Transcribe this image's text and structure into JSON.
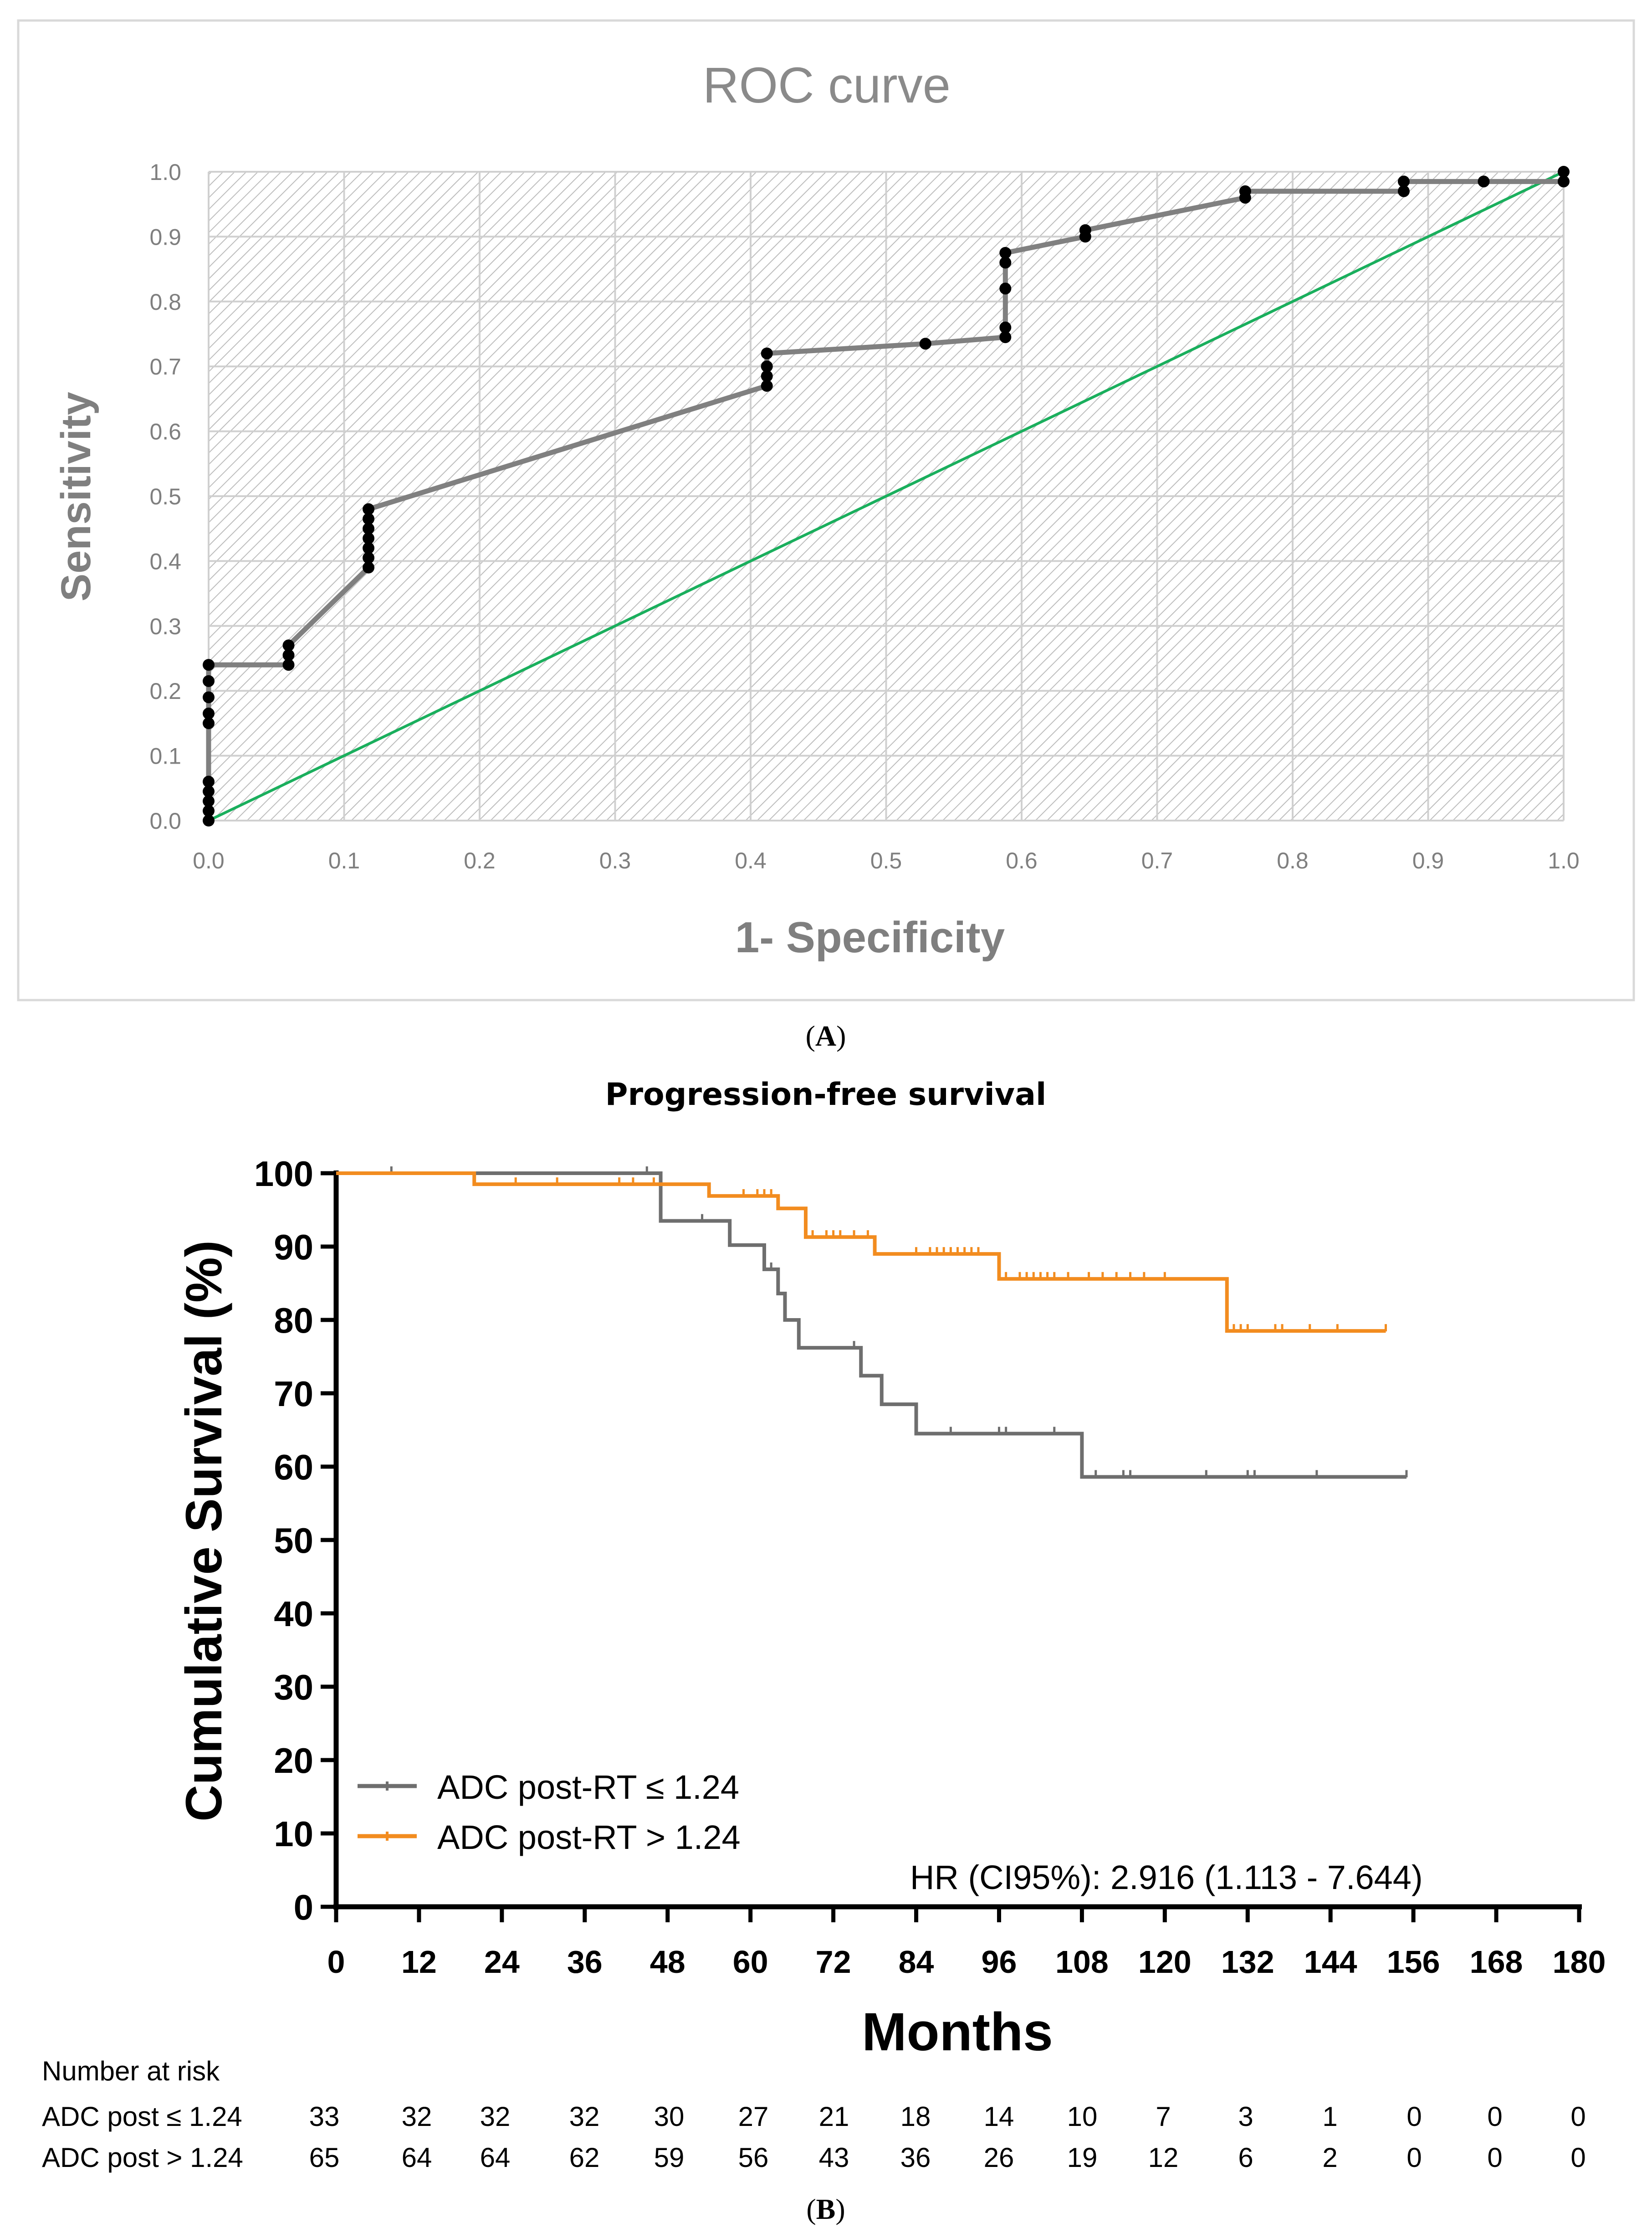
{
  "panel_a": {
    "caption_prefix": "(",
    "caption_letter": "A",
    "caption_suffix": ")"
  },
  "panel_b": {
    "caption_prefix": "(",
    "caption_letter": "B",
    "caption_suffix": ")",
    "hr_text": "HR (CI95%): 2.916 (1.113  - 7.644)",
    "risk_table": {
      "title": "Number at risk",
      "rows": [
        {
          "label": "ADC post ≤ 1.24",
          "values": [
            "33",
            "32",
            "32",
            "32",
            "30",
            "27",
            "21",
            "18",
            "14",
            "10",
            "7",
            "3",
            "1",
            "0",
            "0",
            "0"
          ]
        },
        {
          "label": "ADC post > 1.24",
          "values": [
            "65",
            "64",
            "64",
            "62",
            "59",
            "56",
            "43",
            "36",
            "26",
            "19",
            "12",
            "6",
            "2",
            "0",
            "0",
            "0"
          ]
        }
      ]
    }
  },
  "colors": {
    "roc_curve": "#808080",
    "roc_points": "#000000",
    "diagonal": "#1aaf5d",
    "low_group": "#6e6e6e",
    "high_group": "#f28c1f",
    "roc_frame": "#d9d9d9",
    "roc_grid": "#d0d0d0",
    "roc_hatch": "#b9b9b9",
    "axis_text_a": "#7f7f7f"
  },
  "chart_data": [
    {
      "id": "roc",
      "type": "line",
      "title": "ROC curve",
      "xlabel": "1- Specificity",
      "ylabel": "Sensitivity",
      "xlim": [
        0,
        1
      ],
      "ylim": [
        0,
        1
      ],
      "xticks": [
        "0.0",
        "0.1",
        "0.2",
        "0.3",
        "0.4",
        "0.5",
        "0.6",
        "0.7",
        "0.8",
        "0.9",
        "1.0"
      ],
      "yticks": [
        "0.0",
        "0.1",
        "0.2",
        "0.3",
        "0.4",
        "0.5",
        "0.6",
        "0.7",
        "0.8",
        "0.9",
        "1.0"
      ],
      "grid": true,
      "series": [
        {
          "name": "ROC",
          "points": [
            [
              0,
              0
            ],
            [
              0,
              0.015
            ],
            [
              0,
              0.03
            ],
            [
              0,
              0.045
            ],
            [
              0,
              0.06
            ],
            [
              0,
              0.15
            ],
            [
              0,
              0.165
            ],
            [
              0,
              0.19
            ],
            [
              0,
              0.215
            ],
            [
              0,
              0.24
            ],
            [
              0.059,
              0.24
            ],
            [
              0.059,
              0.255
            ],
            [
              0.059,
              0.27
            ],
            [
              0.118,
              0.39
            ],
            [
              0.118,
              0.405
            ],
            [
              0.118,
              0.42
            ],
            [
              0.118,
              0.435
            ],
            [
              0.118,
              0.45
            ],
            [
              0.118,
              0.465
            ],
            [
              0.118,
              0.48
            ],
            [
              0.412,
              0.67
            ],
            [
              0.412,
              0.685
            ],
            [
              0.412,
              0.7
            ],
            [
              0.412,
              0.72
            ],
            [
              0.529,
              0.735
            ],
            [
              0.588,
              0.745
            ],
            [
              0.588,
              0.76
            ],
            [
              0.588,
              0.82
            ],
            [
              0.588,
              0.86
            ],
            [
              0.588,
              0.875
            ],
            [
              0.647,
              0.9
            ],
            [
              0.647,
              0.91
            ],
            [
              0.765,
              0.96
            ],
            [
              0.765,
              0.97
            ],
            [
              0.882,
              0.97
            ],
            [
              0.882,
              0.985
            ],
            [
              0.941,
              0.985
            ],
            [
              1.0,
              0.985
            ],
            [
              1.0,
              1.0
            ]
          ]
        },
        {
          "name": "Reference",
          "points": [
            [
              0,
              0
            ],
            [
              1,
              1
            ]
          ]
        }
      ]
    },
    {
      "id": "km",
      "type": "line",
      "title": "Progression-free survival",
      "xlabel": "Months",
      "ylabel": "Cumulative Survival (%)",
      "xlim": [
        0,
        180
      ],
      "ylim": [
        0,
        100
      ],
      "xticks": [
        "0",
        "12",
        "24",
        "36",
        "48",
        "60",
        "72",
        "84",
        "96",
        "108",
        "120",
        "132",
        "144",
        "156",
        "168",
        "180"
      ],
      "yticks": [
        "0",
        "10",
        "20",
        "30",
        "40",
        "50",
        "60",
        "70",
        "80",
        "90",
        "100"
      ],
      "legend": "bottom-left",
      "series": [
        {
          "name": "ADC post-RT ≤ 1.24",
          "steps": [
            [
              0,
              100
            ],
            [
              47,
              93.5
            ],
            [
              57,
              90.2
            ],
            [
              62,
              86.9
            ],
            [
              64,
              83.6
            ],
            [
              65,
              80.0
            ],
            [
              67,
              76.2
            ],
            [
              76,
              72.4
            ],
            [
              79,
              68.5
            ],
            [
              84,
              64.5
            ],
            [
              108,
              58.6
            ],
            [
              155,
              58.6
            ]
          ],
          "censors": [
            [
              8,
              100
            ],
            [
              45,
              100
            ],
            [
              53,
              93.5
            ],
            [
              63,
              86.9
            ],
            [
              75,
              76.2
            ],
            [
              89,
              64.5
            ],
            [
              96,
              64.5
            ],
            [
              97,
              64.5
            ],
            [
              104,
              64.5
            ],
            [
              110,
              58.6
            ],
            [
              114,
              58.6
            ],
            [
              115,
              58.6
            ],
            [
              126,
              58.6
            ],
            [
              132,
              58.6
            ],
            [
              133,
              58.6
            ],
            [
              142,
              58.6
            ],
            [
              155,
              58.6
            ]
          ]
        },
        {
          "name": "ADC post-RT > 1.24",
          "steps": [
            [
              0,
              100
            ],
            [
              20,
              98.5
            ],
            [
              54,
              96.9
            ],
            [
              64,
              95.2
            ],
            [
              68,
              91.3
            ],
            [
              78,
              89.0
            ],
            [
              96,
              85.6
            ],
            [
              129,
              78.5
            ],
            [
              152,
              78.5
            ]
          ],
          "censors": [
            [
              20,
              98.5
            ],
            [
              26,
              98.5
            ],
            [
              32,
              98.5
            ],
            [
              41,
              98.5
            ],
            [
              43,
              98.5
            ],
            [
              46,
              98.5
            ],
            [
              59,
              96.9
            ],
            [
              61,
              96.9
            ],
            [
              62,
              96.9
            ],
            [
              63,
              96.9
            ],
            [
              69,
              91.3
            ],
            [
              71,
              91.3
            ],
            [
              72,
              91.3
            ],
            [
              73,
              91.3
            ],
            [
              75,
              91.3
            ],
            [
              77,
              91.3
            ],
            [
              84,
              89.0
            ],
            [
              86,
              89.0
            ],
            [
              87,
              89.0
            ],
            [
              88,
              89.0
            ],
            [
              89,
              89.0
            ],
            [
              90,
              89.0
            ],
            [
              91,
              89.0
            ],
            [
              92,
              89.0
            ],
            [
              93,
              89.0
            ],
            [
              97,
              85.6
            ],
            [
              99,
              85.6
            ],
            [
              100,
              85.6
            ],
            [
              101,
              85.6
            ],
            [
              102,
              85.6
            ],
            [
              103,
              85.6
            ],
            [
              104,
              85.6
            ],
            [
              106,
              85.6
            ],
            [
              109,
              85.6
            ],
            [
              111,
              85.6
            ],
            [
              113,
              85.6
            ],
            [
              115,
              85.6
            ],
            [
              117,
              85.6
            ],
            [
              120,
              85.6
            ],
            [
              130,
              78.5
            ],
            [
              131,
              78.5
            ],
            [
              132,
              78.5
            ],
            [
              136,
              78.5
            ],
            [
              137,
              78.5
            ],
            [
              141,
              78.5
            ],
            [
              145,
              78.5
            ],
            [
              152,
              78.5
            ]
          ]
        }
      ]
    }
  ]
}
